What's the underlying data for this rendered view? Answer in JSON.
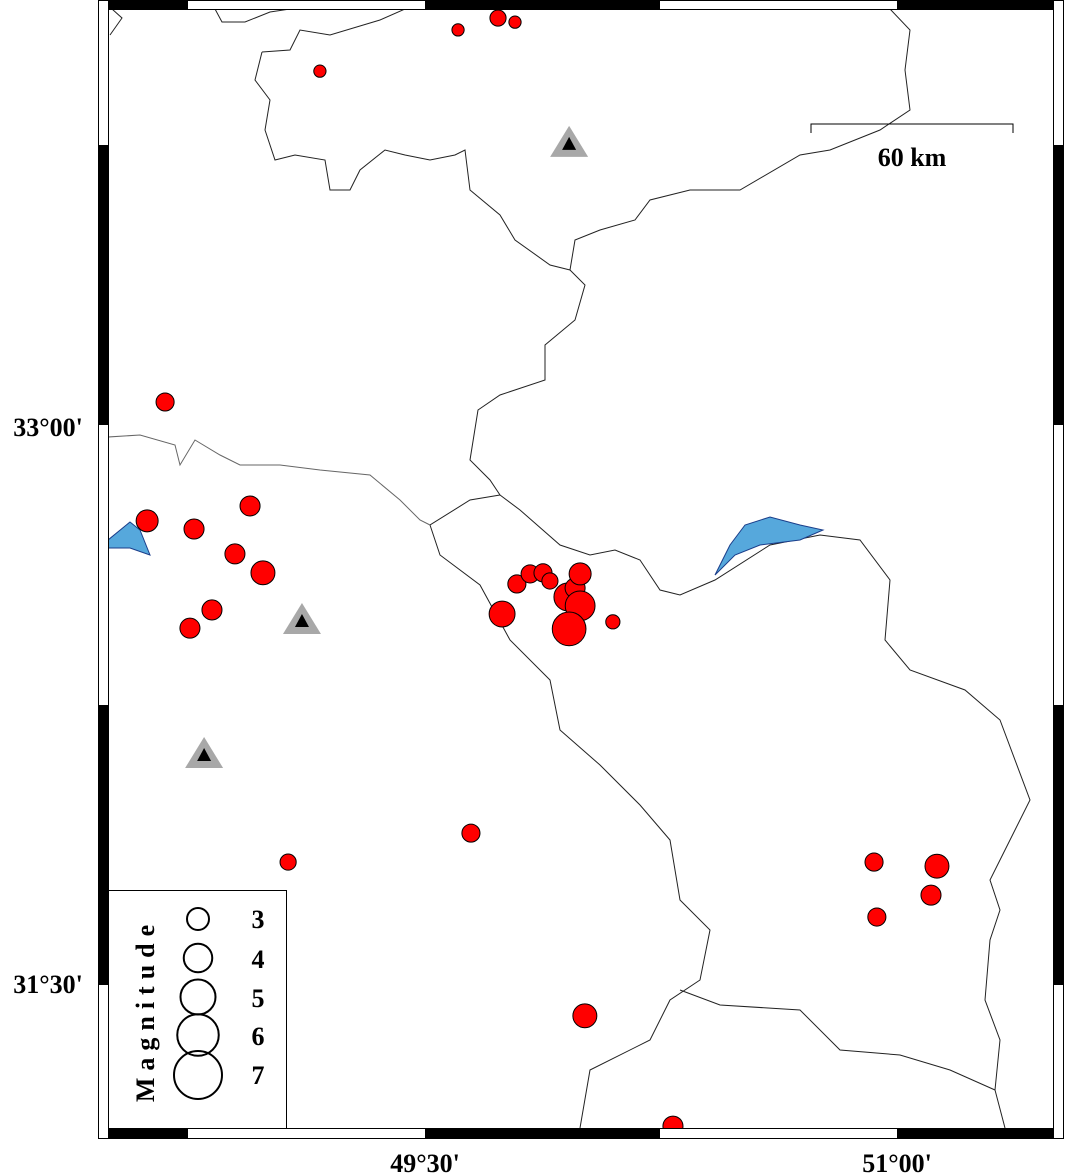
{
  "map": {
    "frame_labels": {
      "lat": [
        {
          "text": "33°00'",
          "value": 33.0
        },
        {
          "text": "31°30'",
          "value": 31.5
        }
      ],
      "lon": [
        {
          "text": "49°30'",
          "value": 49.5
        },
        {
          "text": "51°00'",
          "value": 51.0
        }
      ]
    },
    "scale_bar": {
      "label": "60 km",
      "length_km": 60
    },
    "colors": {
      "event_fill": "#ff0000",
      "lake_fill": "#56a8dc",
      "station_outer": "#a8a8a8",
      "station_inner": "#000000"
    },
    "stations": [
      {
        "lon": 49.958,
        "lat": 33.768
      },
      {
        "lon": 49.109,
        "lat": 32.483
      },
      {
        "lon": 48.798,
        "lat": 32.122
      }
    ],
    "events": [
      {
        "lon": 49.732,
        "lat": 34.104,
        "mag": 2.1
      },
      {
        "lon": 49.786,
        "lat": 34.093,
        "mag": 1.5
      },
      {
        "lon": 49.605,
        "lat": 34.072,
        "mag": 1.5
      },
      {
        "lon": 49.166,
        "lat": 33.961,
        "mag": 1.5
      },
      {
        "lon": 48.674,
        "lat": 33.07,
        "mag": 2.4
      },
      {
        "lon": 48.617,
        "lat": 32.75,
        "mag": 3.0
      },
      {
        "lon": 48.766,
        "lat": 32.728,
        "mag": 2.7
      },
      {
        "lon": 48.944,
        "lat": 32.79,
        "mag": 2.7
      },
      {
        "lon": 48.896,
        "lat": 32.661,
        "mag": 2.7
      },
      {
        "lon": 48.985,
        "lat": 32.61,
        "mag": 3.3
      },
      {
        "lon": 48.823,
        "lat": 32.51,
        "mag": 2.7
      },
      {
        "lon": 48.753,
        "lat": 32.461,
        "mag": 2.7
      },
      {
        "lon": 49.792,
        "lat": 32.58,
        "mag": 2.4
      },
      {
        "lon": 49.834,
        "lat": 32.607,
        "mag": 2.4
      },
      {
        "lon": 49.875,
        "lat": 32.61,
        "mag": 2.4
      },
      {
        "lon": 49.897,
        "lat": 32.588,
        "mag": 2.1
      },
      {
        "lon": 49.954,
        "lat": 32.545,
        "mag": 3.9
      },
      {
        "lon": 49.977,
        "lat": 32.569,
        "mag": 2.7
      },
      {
        "lon": 49.993,
        "lat": 32.607,
        "mag": 3.0
      },
      {
        "lon": 49.993,
        "lat": 32.521,
        "mag": 4.2
      },
      {
        "lon": 49.958,
        "lat": 32.459,
        "mag": 4.8
      },
      {
        "lon": 49.745,
        "lat": 32.499,
        "mag": 3.6
      },
      {
        "lon": 50.097,
        "lat": 32.478,
        "mag": 1.8
      },
      {
        "lon": 49.646,
        "lat": 31.909,
        "mag": 2.4
      },
      {
        "lon": 49.065,
        "lat": 31.831,
        "mag": 2.1
      },
      {
        "lon": 50.927,
        "lat": 31.831,
        "mag": 2.4
      },
      {
        "lon": 51.127,
        "lat": 31.82,
        "mag": 3.3
      },
      {
        "lon": 51.108,
        "lat": 31.742,
        "mag": 2.7
      },
      {
        "lon": 50.936,
        "lat": 31.683,
        "mag": 2.4
      },
      {
        "lon": 50.008,
        "lat": 31.417,
        "mag": 3.3
      },
      {
        "lon": 50.288,
        "lat": 31.12,
        "mag": 2.7
      }
    ]
  },
  "legend": {
    "title": "Magnitude",
    "entries": [
      {
        "label": "3",
        "mag": 3
      },
      {
        "label": "4",
        "mag": 4
      },
      {
        "label": "5",
        "mag": 5
      },
      {
        "label": "6",
        "mag": 6
      },
      {
        "label": "7",
        "mag": 7
      }
    ]
  }
}
